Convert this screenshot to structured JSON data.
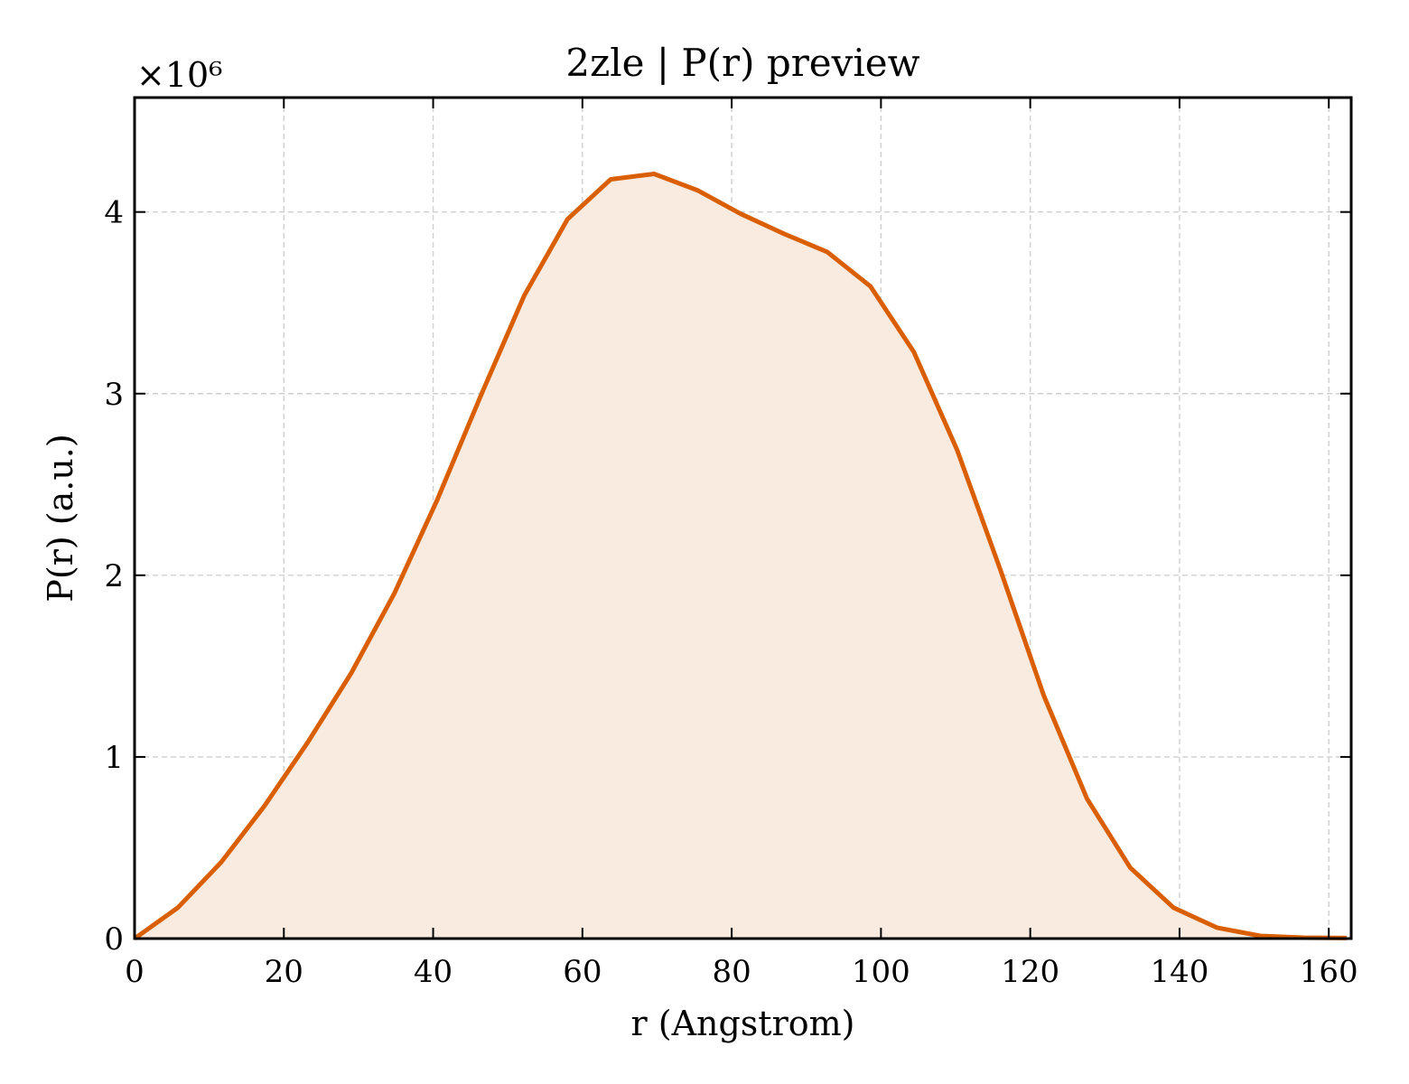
{
  "chart_data": {
    "type": "area",
    "title": "2zle | P(r) preview",
    "xlabel": "r (Angstrom)",
    "ylabel": "P(r) (a.u.)",
    "y_multiplier_label": "×10⁶",
    "xlim": [
      0,
      163
    ],
    "ylim": [
      0,
      4.63
    ],
    "xticks": [
      0,
      20,
      40,
      60,
      80,
      100,
      120,
      140,
      160
    ],
    "yticks": [
      0,
      1,
      2,
      3,
      4
    ],
    "grid": true,
    "line_color": "#d95f02",
    "fill_color": "#f9ebe0",
    "series": [
      {
        "x": [
          0,
          5.8,
          11.6,
          17.4,
          23.2,
          29.0,
          34.8,
          40.6,
          46.4,
          52.2,
          58.0,
          63.8,
          69.6,
          75.4,
          81.2,
          87.0,
          92.8,
          98.6,
          104.4,
          110.2,
          116.0,
          121.8,
          127.6,
          133.4,
          139.2,
          145.0,
          150.8,
          156.6,
          162.4
        ],
        "y": [
          0.0,
          0.17,
          0.42,
          0.73,
          1.08,
          1.46,
          1.9,
          2.42,
          2.99,
          3.54,
          3.96,
          4.18,
          4.21,
          4.12,
          3.99,
          3.88,
          3.78,
          3.59,
          3.23,
          2.69,
          2.03,
          1.34,
          0.77,
          0.39,
          0.17,
          0.06,
          0.015,
          0.005,
          0.003
        ]
      }
    ]
  }
}
